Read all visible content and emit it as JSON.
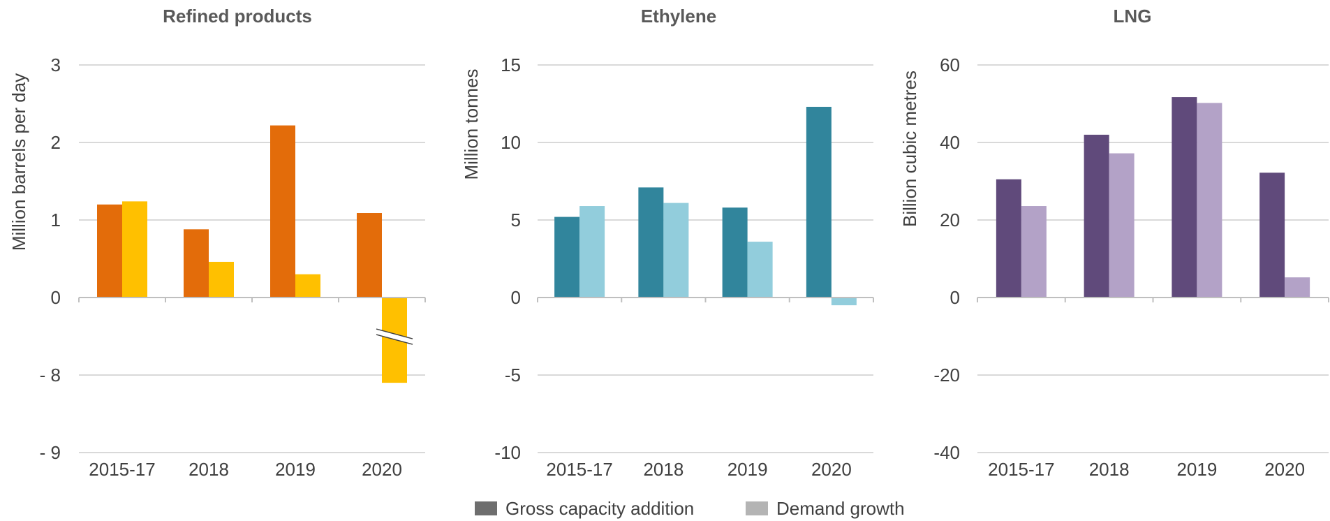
{
  "chart_data": [
    {
      "type": "bar",
      "title": "Refined products",
      "ylabel": "Million barrels per day",
      "categories": [
        "2015-17",
        "2018",
        "2019",
        "2020"
      ],
      "yticks": [
        "3",
        "2",
        "1",
        "0",
        "- 8",
        "- 9"
      ],
      "axis_break": true,
      "series": [
        {
          "name": "Gross capacity addition",
          "color": "#E36C0A",
          "values": [
            1.2,
            0.88,
            2.22,
            1.09
          ]
        },
        {
          "name": "Demand growth",
          "color": "#FFC000",
          "values": [
            1.24,
            0.46,
            0.3,
            -8.1
          ]
        }
      ]
    },
    {
      "type": "bar",
      "title": "Ethylene",
      "ylabel": "Million tonnes",
      "categories": [
        "2015-17",
        "2018",
        "2019",
        "2020"
      ],
      "yticks": [
        "15",
        "10",
        "5",
        "0",
        "-5",
        "-10"
      ],
      "ylim": [
        -10,
        15
      ],
      "series": [
        {
          "name": "Gross capacity addition",
          "color": "#31859C",
          "values": [
            5.2,
            7.1,
            5.8,
            12.3
          ]
        },
        {
          "name": "Demand growth",
          "color": "#92CDDC",
          "values": [
            5.9,
            6.1,
            3.6,
            -0.5
          ]
        }
      ]
    },
    {
      "type": "bar",
      "title": "LNG",
      "ylabel": "Billion cubic metres",
      "categories": [
        "2015-17",
        "2018",
        "2019",
        "2020"
      ],
      "yticks": [
        "60",
        "40",
        "20",
        "0",
        "-20",
        "-40"
      ],
      "ylim": [
        -40,
        60
      ],
      "series": [
        {
          "name": "Gross capacity addition",
          "color": "#604A7B",
          "values": [
            30.5,
            42,
            51.7,
            32.2
          ]
        },
        {
          "name": "Demand growth",
          "color": "#B3A2C7",
          "values": [
            23.6,
            37.2,
            50.2,
            5.2
          ]
        }
      ]
    }
  ],
  "legend": [
    {
      "label": "Gross capacity addition",
      "color": "#6E6E6E"
    },
    {
      "label": "Demand growth",
      "color": "#B4B4B4"
    }
  ],
  "gridline_color": "#D9D9D9",
  "axis_color": "#BFBFBF"
}
